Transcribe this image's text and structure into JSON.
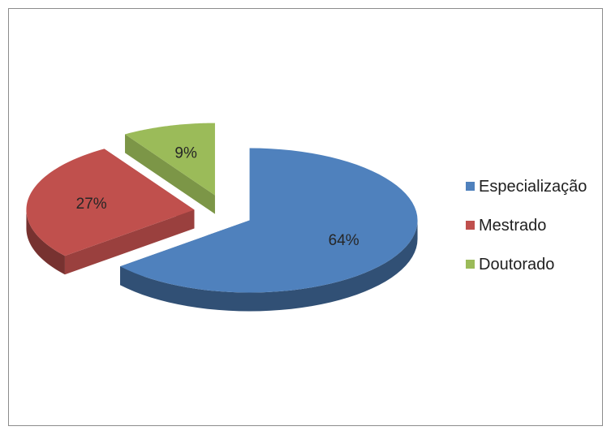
{
  "chart_data": {
    "type": "pie",
    "style": "3d-exploded",
    "categories": [
      "Especialização",
      "Mestrado",
      "Doutorado"
    ],
    "values": [
      64,
      27,
      9
    ],
    "labels": [
      "64%",
      "27%",
      "9%"
    ],
    "colors": [
      "#4f81bd",
      "#c0504d",
      "#9bbb59"
    ],
    "legend_position": "right",
    "title": ""
  }
}
